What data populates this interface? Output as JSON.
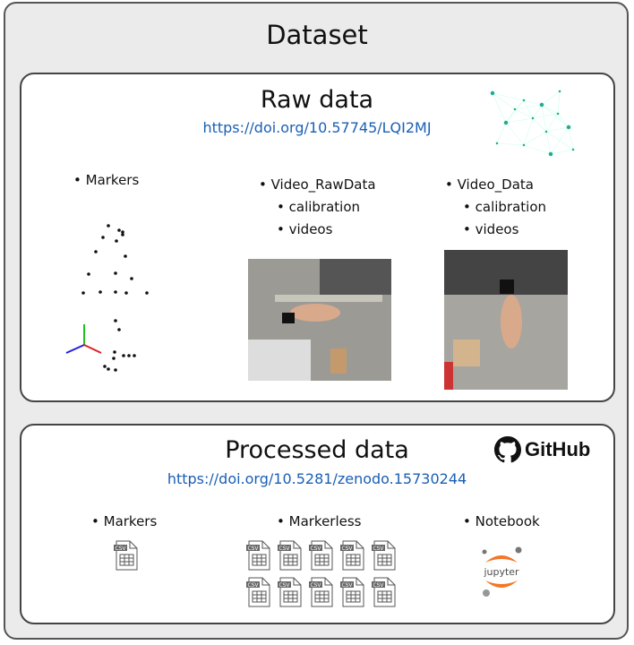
{
  "title": "Dataset",
  "raw": {
    "title": "Raw data",
    "doi": "https://doi.org/10.57745/LQI2MJ",
    "markers": "Markers",
    "video_raw": {
      "label": "Video_RawData",
      "children": [
        "calibration",
        "videos"
      ]
    },
    "video_data": {
      "label": "Video_Data",
      "children": [
        "calibration",
        "videos"
      ]
    }
  },
  "processed": {
    "title": "Processed data",
    "doi": "https://doi.org/10.5281/zenodo.15730244",
    "github_logo": "GitHub",
    "markers": "Markers",
    "markerless": "Markerless",
    "notebook": "Notebook",
    "csv_icon_text": "CSV",
    "jupyter_logo": "jupyter"
  },
  "colors": {
    "link": "#1a5fb4",
    "jupyter": "#f37726",
    "axis_x": "#e02020",
    "axis_y": "#20c020",
    "axis_z": "#2020e0"
  }
}
